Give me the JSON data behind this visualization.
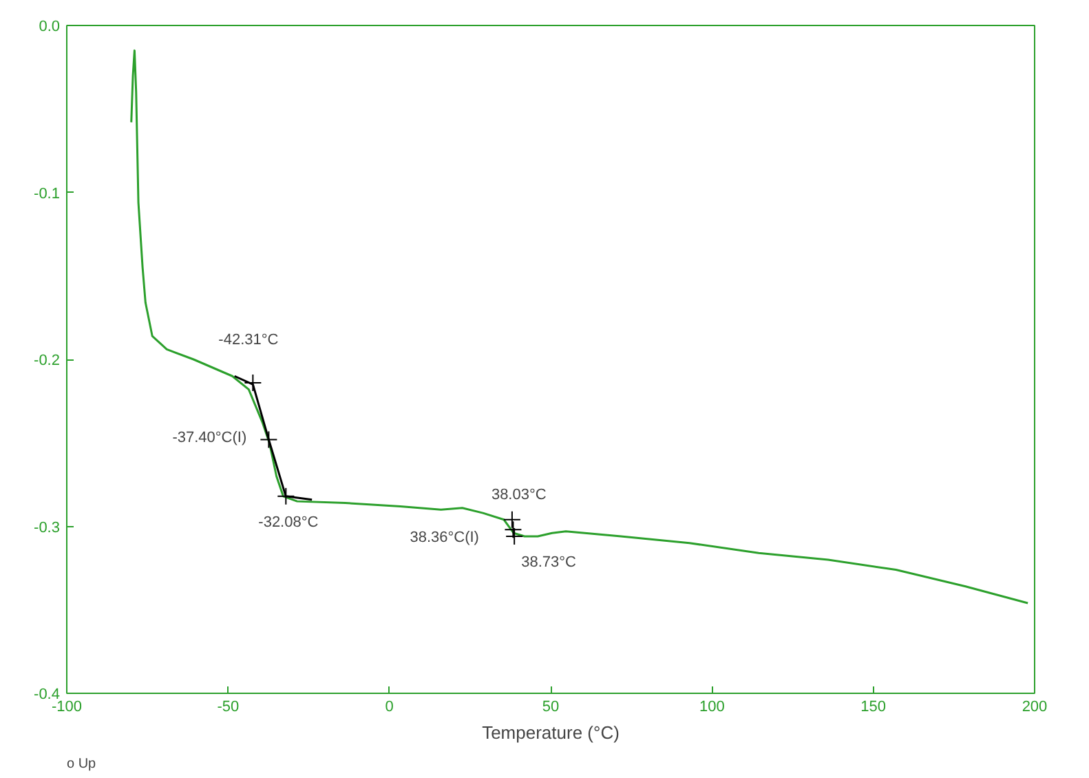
{
  "chart_data": {
    "type": "line",
    "xlabel": "Temperature (°C)",
    "xlim": [
      -100,
      200
    ],
    "ylim": [
      -0.4,
      0.0
    ],
    "xticks": [
      -100,
      -50,
      0,
      50,
      100,
      150,
      200
    ],
    "yticks": [
      -0.4,
      -0.3,
      -0.2,
      -0.1,
      {
        "value": 0,
        "label": "0.0"
      }
    ],
    "grid": false,
    "series": [
      {
        "color": "#2ca02c",
        "x": [
          -80,
          -79.5,
          -79,
          -78.5,
          -77.8,
          -76.5,
          -75.6,
          -73.5,
          -69,
          -60.7,
          -48.7,
          -43.6,
          -39.3,
          -37.2,
          -35,
          -32.9,
          -28.6,
          -13.7,
          3.4,
          16,
          22.6,
          29,
          35.5,
          38.5,
          41.9,
          46,
          50.4,
          54.7,
          71.8,
          93,
          114.5,
          136,
          157,
          178.6,
          197.9
        ],
        "values": [
          -0.058,
          -0.03,
          -0.015,
          -0.04,
          -0.106,
          -0.145,
          -0.166,
          -0.186,
          -0.194,
          -0.2,
          -0.21,
          -0.218,
          -0.238,
          -0.25,
          -0.27,
          -0.282,
          -0.285,
          -0.286,
          -0.288,
          -0.29,
          -0.289,
          -0.292,
          -0.296,
          -0.304,
          -0.306,
          -0.306,
          -0.304,
          -0.303,
          -0.306,
          -0.31,
          -0.316,
          -0.32,
          -0.326,
          -0.336,
          -0.346
        ]
      },
      {
        "color": "#000000",
        "x": [
          -48,
          -42.3,
          -37.4,
          -32.1,
          -24
        ],
        "values": [
          -0.21,
          -0.215,
          -0.248,
          -0.282,
          -0.284
        ]
      }
    ],
    "annotations": [
      {
        "text": "-42.31°C",
        "x": -42.31,
        "y": -0.214
      },
      {
        "text": "-37.40°C(I)",
        "x": -37.4,
        "y": -0.248
      },
      {
        "text": "-32.08°C",
        "x": -32.08,
        "y": -0.282
      },
      {
        "text": "38.03°C",
        "x": 38.03,
        "y": -0.296
      },
      {
        "text": "38.36°C(I)",
        "x": 38.36,
        "y": -0.302
      },
      {
        "text": "38.73°C",
        "x": 38.73,
        "y": -0.306
      },
      "o Up"
    ]
  }
}
